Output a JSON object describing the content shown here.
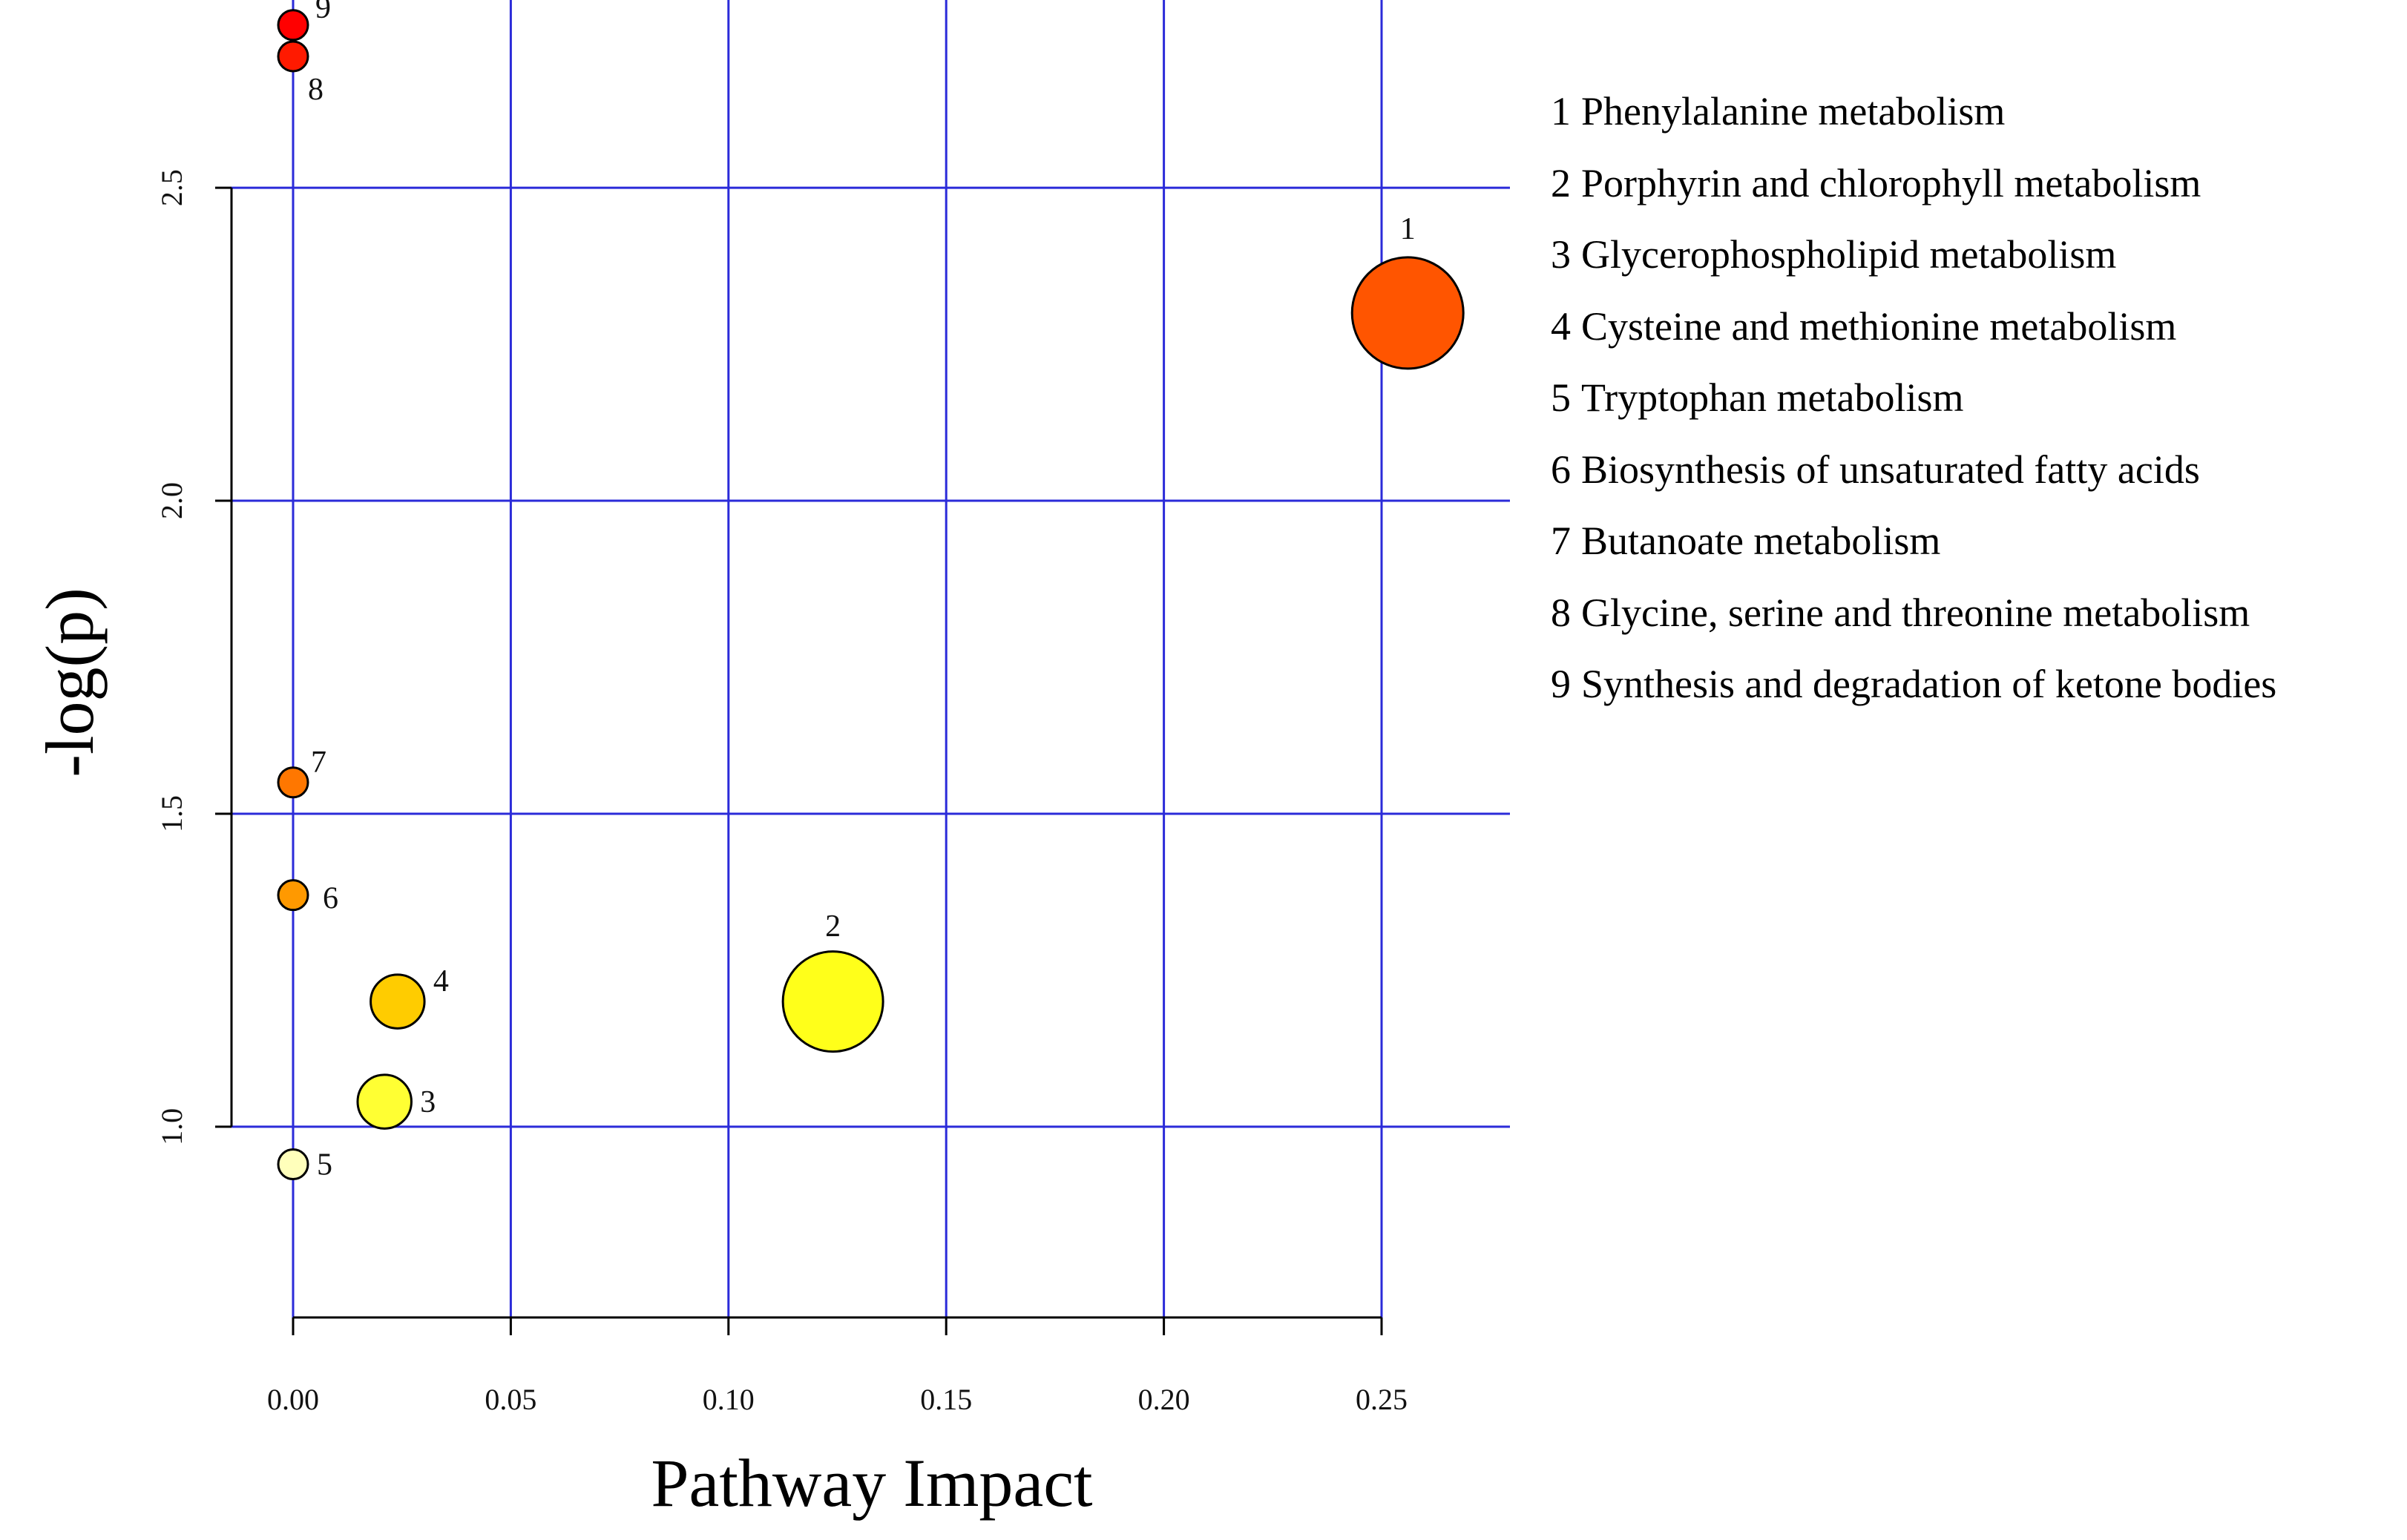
{
  "chart_data": {
    "type": "scatter",
    "title": "",
    "xlabel": "Pathway Impact",
    "ylabel": "-log(p)",
    "xlim": [
      0.0,
      0.25
    ],
    "ylim": [
      0.7,
      2.8
    ],
    "x_ticks": [
      "0.00",
      "0.05",
      "0.10",
      "0.15",
      "0.20",
      "0.25"
    ],
    "y_ticks": [
      "1.0",
      "1.5",
      "2.0",
      "2.5"
    ],
    "grid": true,
    "legend_position": "right",
    "points": [
      {
        "id": "1",
        "name": "Phenylalanine metabolism",
        "x": 0.256,
        "y": 2.3,
        "size": 3.0,
        "color": "#ff5500"
      },
      {
        "id": "2",
        "name": "Porphyrin and chlorophyll metabolism",
        "x": 0.124,
        "y": 1.2,
        "size": 2.7,
        "color": "#ffff1a"
      },
      {
        "id": "3",
        "name": "Glycerophospholipid metabolism",
        "x": 0.021,
        "y": 1.04,
        "size": 1.45,
        "color": "#ffff33"
      },
      {
        "id": "4",
        "name": "Cysteine and methionine metabolism",
        "x": 0.024,
        "y": 1.2,
        "size": 1.45,
        "color": "#ffcc00"
      },
      {
        "id": "5",
        "name": "Tryptophan metabolism",
        "x": 0.0,
        "y": 0.94,
        "size": 0.8,
        "color": "#ffffbb"
      },
      {
        "id": "6",
        "name": "Biosynthesis of unsaturated fatty acids",
        "x": 0.0,
        "y": 1.37,
        "size": 0.8,
        "color": "#ff9900"
      },
      {
        "id": "7",
        "name": "Butanoate metabolism",
        "x": 0.0,
        "y": 1.55,
        "size": 0.8,
        "color": "#ff7700"
      },
      {
        "id": "8",
        "name": "Glycine, serine and threonine metabolism",
        "x": 0.0,
        "y": 2.71,
        "size": 0.8,
        "color": "#ff1a00"
      },
      {
        "id": "9",
        "name": "Synthesis and degradation of ketone bodies",
        "x": 0.0,
        "y": 2.76,
        "size": 0.8,
        "color": "#ff0000"
      }
    ]
  }
}
